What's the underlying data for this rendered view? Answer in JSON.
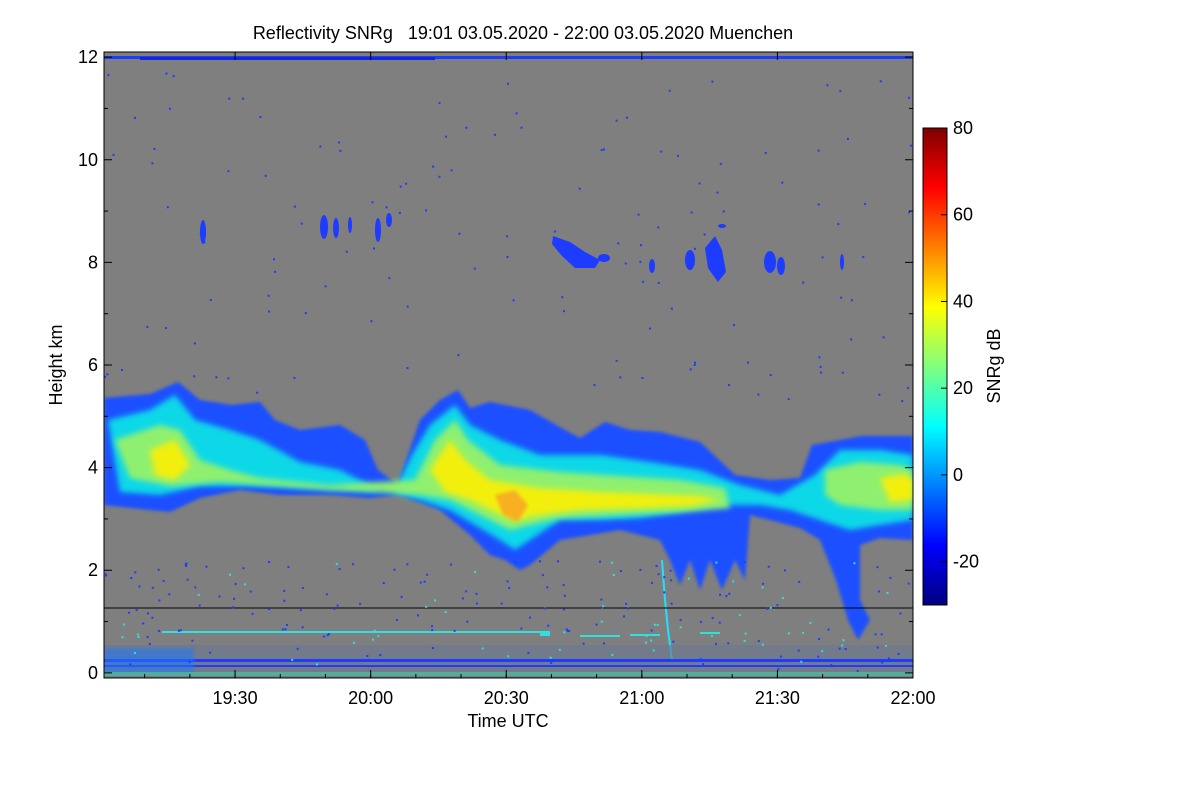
{
  "chart_data": {
    "type": "heatmap",
    "title": "Reflectivity SNRg   19:01 03.05.2020 - 22:00 03.05.2020 Muenchen",
    "xlabel": "Time UTC",
    "ylabel": "Height km",
    "colorbar_label": "SNRg dB",
    "x_range": [
      "19:01",
      "22:00"
    ],
    "x_ticks": [
      {
        "label": "19:30",
        "minutes": 29
      },
      {
        "label": "20:00",
        "minutes": 59
      },
      {
        "label": "20:30",
        "minutes": 89
      },
      {
        "label": "21:00",
        "minutes": 119
      },
      {
        "label": "21:30",
        "minutes": 149
      },
      {
        "label": "22:00",
        "minutes": 179
      }
    ],
    "ylim": [
      -0.1,
      12.1
    ],
    "y_ticks": [
      0,
      2,
      4,
      6,
      8,
      10,
      12
    ],
    "colorbar_range": [
      -30,
      80
    ],
    "colorbar_ticks": [
      -20,
      0,
      20,
      40,
      60,
      80
    ],
    "colors": {
      "background": "#7f7f7f",
      "weak_echo": "#1e3cff",
      "colormap": [
        "#00007f",
        "#0000ff",
        "#007fff",
        "#00ffff",
        "#7fff7f",
        "#ffff00",
        "#ff7f00",
        "#ff0000",
        "#7f0000"
      ]
    },
    "reference_line_height_km": 1.3,
    "cloud_layers": [
      {
        "name": "main-stratiform-layer",
        "time_min": [
          0,
          179
        ],
        "height_km": [
          2.2,
          5.7
        ],
        "peak_dbz": 40
      },
      {
        "name": "upper-cirrus-patches",
        "time_min": [
          20,
          150
        ],
        "height_km": [
          7.8,
          8.9
        ],
        "peak_dbz": -20
      },
      {
        "name": "boundary-layer-clutter",
        "time_min": [
          0,
          179
        ],
        "height_km": [
          0,
          0.9
        ],
        "peak_dbz": 10
      }
    ]
  }
}
